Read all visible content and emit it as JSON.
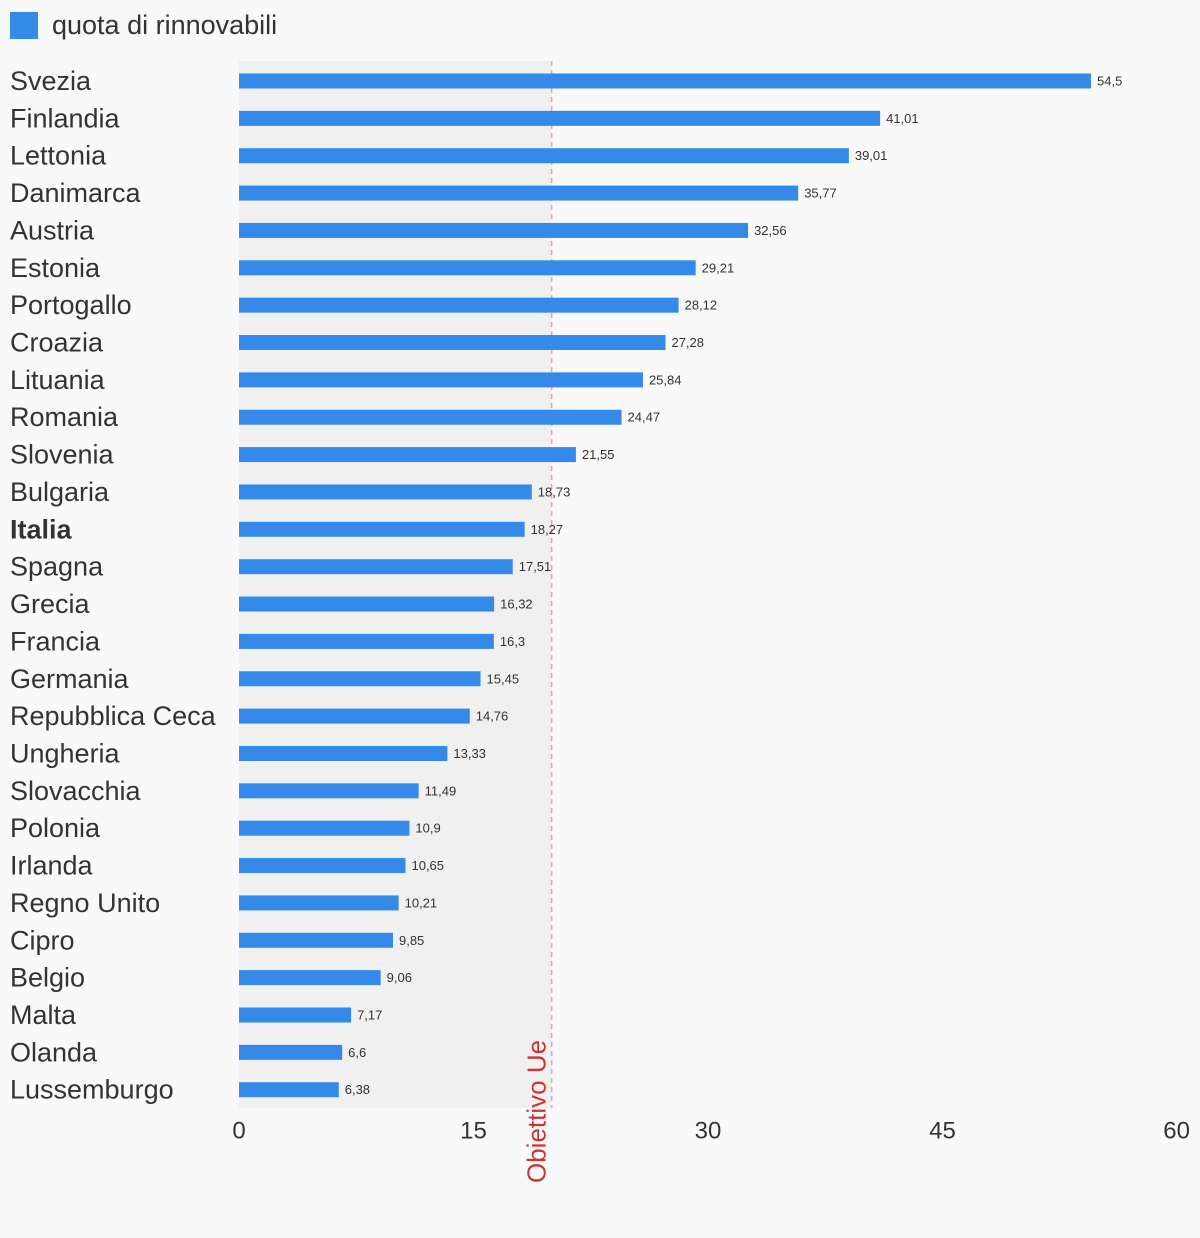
{
  "legend": {
    "label": "quota di rinnovabili",
    "color": "#3589e8"
  },
  "chart_data": {
    "type": "bar",
    "orientation": "horizontal",
    "categories": [
      "Svezia",
      "Finlandia",
      "Lettonia",
      "Danimarca",
      "Austria",
      "Estonia",
      "Portogallo",
      "Croazia",
      "Lituania",
      "Romania",
      "Slovenia",
      "Bulgaria",
      "Italia",
      "Spagna",
      "Grecia",
      "Francia",
      "Germania",
      "Repubblica Ceca",
      "Ungheria",
      "Slovacchia",
      "Polonia",
      "Irlanda",
      "Regno Unito",
      "Cipro",
      "Belgio",
      "Malta",
      "Olanda",
      "Lussemburgo"
    ],
    "highlighted_category": "Italia",
    "series": [
      {
        "name": "quota di rinnovabili",
        "color": "#3589e8",
        "values": [
          54.5,
          41.01,
          39.01,
          35.77,
          32.56,
          29.21,
          28.12,
          27.28,
          25.84,
          24.47,
          21.55,
          18.73,
          18.27,
          17.51,
          16.32,
          16.3,
          15.45,
          14.76,
          13.33,
          11.49,
          10.9,
          10.65,
          10.21,
          9.85,
          9.06,
          7.17,
          6.6,
          6.38
        ],
        "value_labels": [
          "54,5",
          "41,01",
          "39,01",
          "35,77",
          "32,56",
          "29,21",
          "28,12",
          "27,28",
          "25,84",
          "24,47",
          "21,55",
          "18,73",
          "18,27",
          "17,51",
          "16,32",
          "16,3",
          "15,45",
          "14,76",
          "13,33",
          "11,49",
          "10,9",
          "10,65",
          "10,21",
          "9,85",
          "9,06",
          "7,17",
          "6,6",
          "6,38"
        ]
      }
    ],
    "xlim": [
      0,
      60
    ],
    "x_ticks": [
      0,
      15,
      30,
      45,
      60
    ],
    "x_tick_labels": [
      "0",
      "15",
      "30",
      "45",
      "60"
    ],
    "reference": {
      "label": "Obiettivo Ue",
      "value": 20,
      "color": "#cc3333",
      "shaded_band": [
        0,
        20
      ]
    },
    "legend_position": "top-left",
    "grid": false
  }
}
